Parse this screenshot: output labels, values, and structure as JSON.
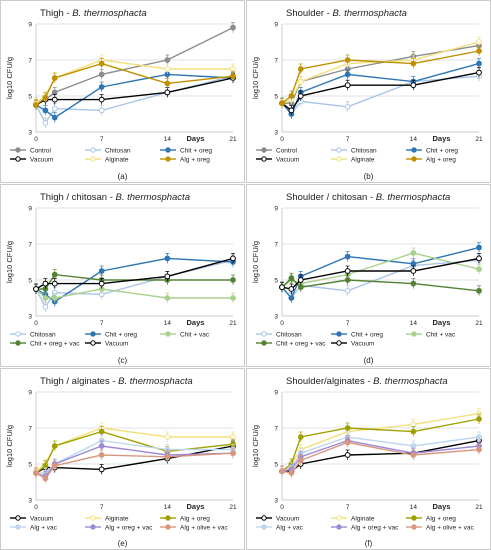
{
  "figure": {
    "layout": "3 rows x 2 columns of line charts"
  },
  "chart_data": [
    {
      "type": "line",
      "title": "Thigh - B. thermosphacta",
      "ylabel": "log10 CFU/g",
      "xlabel": "Days",
      "panel_label": "(a)",
      "x": [
        0,
        1,
        2,
        7,
        14,
        21
      ],
      "xticks": [
        0,
        7,
        14,
        21
      ],
      "yticks": [
        3,
        5,
        7,
        9
      ],
      "ylim": [
        3,
        9
      ],
      "xlim": [
        0,
        21
      ],
      "grid": true,
      "legend_position": "bottom",
      "series": [
        {
          "name": "Control",
          "color": "#8c8c8c",
          "dash": "",
          "marker_fill": "#8c8c8c",
          "values": [
            4.6,
            4.8,
            5.2,
            6.2,
            7.0,
            8.8
          ]
        },
        {
          "name": "Chitosan",
          "color": "#a9c4e8",
          "dash": "",
          "marker_fill": "#ffffff",
          "values": [
            4.5,
            3.5,
            4.3,
            4.2,
            5.2,
            6.1
          ]
        },
        {
          "name": "Chit + oreg",
          "color": "#2e75b6",
          "dash": "",
          "marker_fill": "#2e75b6",
          "values": [
            4.5,
            4.2,
            3.8,
            5.5,
            6.2,
            6.0
          ]
        },
        {
          "name": "Vacuum",
          "color": "#000000",
          "dash": "",
          "marker_fill": "#ffffff",
          "values": [
            4.5,
            4.8,
            4.8,
            4.8,
            5.2,
            6.0
          ]
        },
        {
          "name": "Alginate",
          "color": "#f2e07a",
          "dash": "",
          "marker_fill": "#ffffff",
          "values": [
            4.6,
            5.0,
            6.0,
            7.0,
            6.5,
            6.5
          ]
        },
        {
          "name": "Alg + oreg",
          "color": "#bf9000",
          "dash": "",
          "marker_fill": "#bf9000",
          "values": [
            4.5,
            4.9,
            6.0,
            6.8,
            5.7,
            6.1
          ]
        }
      ]
    },
    {
      "type": "line",
      "title": "Shoulder - B. thermosphacta",
      "ylabel": "log10 CFU/g",
      "xlabel": "Days",
      "panel_label": "(b)",
      "x": [
        0,
        1,
        2,
        7,
        14,
        21
      ],
      "xticks": [
        0,
        7,
        14,
        21
      ],
      "yticks": [
        3,
        5,
        7,
        9
      ],
      "ylim": [
        3,
        9
      ],
      "xlim": [
        0,
        21
      ],
      "grid": true,
      "legend_position": "bottom",
      "series": [
        {
          "name": "Control",
          "color": "#8c8c8c",
          "dash": "",
          "marker_fill": "#8c8c8c",
          "values": [
            4.6,
            4.6,
            5.8,
            6.5,
            7.2,
            7.8
          ]
        },
        {
          "name": "Chitosan",
          "color": "#a9c4e8",
          "dash": "",
          "marker_fill": "#ffffff",
          "values": [
            4.6,
            4.0,
            4.7,
            4.4,
            5.8,
            6.1
          ]
        },
        {
          "name": "Chit + oreg",
          "color": "#2e75b6",
          "dash": "",
          "marker_fill": "#2e75b6",
          "values": [
            4.6,
            4.0,
            5.2,
            6.2,
            5.8,
            6.8
          ]
        },
        {
          "name": "Vacuum",
          "color": "#000000",
          "dash": "",
          "marker_fill": "#ffffff",
          "values": [
            4.6,
            4.2,
            5.0,
            5.6,
            5.6,
            6.3
          ]
        },
        {
          "name": "Alginate",
          "color": "#f2e07a",
          "dash": "",
          "marker_fill": "#ffffff",
          "values": [
            4.6,
            4.8,
            5.8,
            6.8,
            7.0,
            8.0
          ]
        },
        {
          "name": "Alg + oreg",
          "color": "#bf9000",
          "dash": "",
          "marker_fill": "#bf9000",
          "values": [
            4.6,
            5.0,
            6.5,
            7.0,
            6.8,
            7.5
          ]
        }
      ]
    },
    {
      "type": "line",
      "title": "Thigh / chitosan - B. thermosphacta",
      "ylabel": "log10 CFU/g",
      "xlabel": "Days",
      "panel_label": "(c)",
      "x": [
        0,
        1,
        2,
        7,
        14,
        21
      ],
      "xticks": [
        0,
        7,
        14,
        21
      ],
      "yticks": [
        3,
        5,
        7,
        9
      ],
      "ylim": [
        3,
        9
      ],
      "xlim": [
        0,
        21
      ],
      "grid": true,
      "legend_position": "bottom",
      "series": [
        {
          "name": "Chitosan",
          "color": "#a9c4e8",
          "dash": "",
          "marker_fill": "#ffffff",
          "values": [
            4.5,
            3.5,
            4.3,
            4.2,
            5.2,
            6.1
          ]
        },
        {
          "name": "Chit + oreg",
          "color": "#2e75b6",
          "dash": "",
          "marker_fill": "#2e75b6",
          "values": [
            4.5,
            4.2,
            3.8,
            5.5,
            6.2,
            6.0
          ]
        },
        {
          "name": "Chit + vac",
          "color": "#a9d18e",
          "dash": "",
          "marker_fill": "#a9d18e",
          "values": [
            4.5,
            4.0,
            4.0,
            4.5,
            4.0,
            4.0
          ]
        },
        {
          "name": "Chit + oreg + vac",
          "color": "#548235",
          "dash": "",
          "marker_fill": "#548235",
          "values": [
            4.5,
            4.5,
            5.3,
            5.0,
            5.0,
            5.0
          ]
        },
        {
          "name": "Vacuum",
          "color": "#000000",
          "dash": "",
          "marker_fill": "#ffffff",
          "values": [
            4.5,
            4.8,
            4.8,
            4.8,
            5.2,
            6.2
          ]
        }
      ]
    },
    {
      "type": "line",
      "title": "Shoulder / chitosan - B. thermosphacta",
      "ylabel": "log10 CFU/g",
      "xlabel": "Days",
      "panel_label": "(d)",
      "x": [
        0,
        1,
        2,
        7,
        14,
        21
      ],
      "xticks": [
        0,
        7,
        14,
        21
      ],
      "yticks": [
        3,
        5,
        7,
        9
      ],
      "ylim": [
        3,
        9
      ],
      "xlim": [
        0,
        21
      ],
      "grid": true,
      "legend_position": "bottom",
      "series": [
        {
          "name": "Chitosan",
          "color": "#a9c4e8",
          "dash": "",
          "marker_fill": "#ffffff",
          "values": [
            4.6,
            4.0,
            4.7,
            4.4,
            5.8,
            6.1
          ]
        },
        {
          "name": "Chit + oreg",
          "color": "#2e75b6",
          "dash": "",
          "marker_fill": "#2e75b6",
          "values": [
            4.6,
            4.0,
            5.2,
            6.3,
            5.9,
            6.8
          ]
        },
        {
          "name": "Chit + vac",
          "color": "#a9d18e",
          "dash": "",
          "marker_fill": "#a9d18e",
          "values": [
            4.6,
            5.0,
            4.8,
            5.3,
            6.5,
            5.6
          ]
        },
        {
          "name": "Chit + oreg + vac",
          "color": "#548235",
          "dash": "",
          "marker_fill": "#548235",
          "values": [
            4.6,
            5.1,
            4.6,
            5.0,
            4.8,
            4.4
          ]
        },
        {
          "name": "Vacuum",
          "color": "#000000",
          "dash": "",
          "marker_fill": "#ffffff",
          "values": [
            4.6,
            4.5,
            5.0,
            5.5,
            5.5,
            6.2
          ]
        }
      ]
    },
    {
      "type": "line",
      "title": "Thigh / alginates - B. thermosphacta",
      "ylabel": "log10 CFU/g",
      "xlabel": "Days",
      "panel_label": "(e)",
      "x": [
        0,
        1,
        2,
        7,
        14,
        21
      ],
      "xticks": [
        0,
        7,
        14,
        21
      ],
      "yticks": [
        3,
        5,
        7,
        9
      ],
      "ylim": [
        3,
        9
      ],
      "xlim": [
        0,
        21
      ],
      "grid": true,
      "legend_position": "bottom",
      "series": [
        {
          "name": "Vacuum",
          "color": "#000000",
          "dash": "",
          "marker_fill": "#ffffff",
          "values": [
            4.5,
            4.8,
            4.8,
            4.7,
            5.3,
            6.0
          ]
        },
        {
          "name": "Alginate",
          "color": "#f2e07a",
          "dash": "",
          "marker_fill": "#ffffff",
          "values": [
            4.6,
            5.0,
            6.0,
            7.0,
            6.5,
            6.5
          ]
        },
        {
          "name": "Alg + oreg",
          "color": "#a0a000",
          "dash": "",
          "marker_fill": "#a0a000",
          "values": [
            4.5,
            4.9,
            6.0,
            6.8,
            5.7,
            6.1
          ]
        },
        {
          "name": "Alg + vac",
          "color": "#bdd7ee",
          "dash": "",
          "marker_fill": "#bdd7ee",
          "values": [
            4.5,
            4.5,
            5.0,
            6.3,
            5.8,
            5.8
          ]
        },
        {
          "name": "Alg + oreg + vac",
          "color": "#9b8bd6",
          "dash": "",
          "marker_fill": "#9b8bd6",
          "values": [
            4.5,
            4.3,
            5.0,
            6.0,
            5.5,
            5.6
          ]
        },
        {
          "name": "Alg + olive + vac",
          "color": "#d9967f",
          "dash": "",
          "marker_fill": "#d9967f",
          "values": [
            4.5,
            4.2,
            4.9,
            5.5,
            5.4,
            5.6
          ]
        }
      ]
    },
    {
      "type": "line",
      "title": "Shoulder/alginates - B. thermosphacta",
      "ylabel": "log10 CFU/g",
      "xlabel": "Days",
      "panel_label": "(f)",
      "x": [
        0,
        1,
        2,
        7,
        14,
        21
      ],
      "xticks": [
        0,
        7,
        14,
        21
      ],
      "yticks": [
        3,
        5,
        7,
        9
      ],
      "ylim": [
        3,
        9
      ],
      "xlim": [
        0,
        21
      ],
      "grid": true,
      "legend_position": "bottom",
      "series": [
        {
          "name": "Vacuum",
          "color": "#000000",
          "dash": "",
          "marker_fill": "#ffffff",
          "values": [
            4.6,
            4.6,
            5.0,
            5.5,
            5.6,
            6.3
          ]
        },
        {
          "name": "Alginate",
          "color": "#f2e07a",
          "dash": "",
          "marker_fill": "#ffffff",
          "values": [
            4.6,
            5.0,
            5.8,
            6.8,
            7.2,
            7.8
          ]
        },
        {
          "name": "Alg + oreg",
          "color": "#a0a000",
          "dash": "",
          "marker_fill": "#a0a000",
          "values": [
            4.6,
            5.0,
            6.5,
            7.0,
            6.8,
            7.5
          ]
        },
        {
          "name": "Alg + vac",
          "color": "#bdd7ee",
          "dash": "",
          "marker_fill": "#bdd7ee",
          "values": [
            4.6,
            4.8,
            5.6,
            6.5,
            6.0,
            6.5
          ]
        },
        {
          "name": "Alg + oreg + vac",
          "color": "#9b8bd6",
          "dash": "",
          "marker_fill": "#9b8bd6",
          "values": [
            4.6,
            4.7,
            5.4,
            6.3,
            5.6,
            6.0
          ]
        },
        {
          "name": "Alg + olive + vac",
          "color": "#d9967f",
          "dash": "",
          "marker_fill": "#d9967f",
          "values": [
            4.6,
            4.5,
            5.2,
            6.2,
            5.5,
            5.8
          ]
        }
      ]
    }
  ]
}
